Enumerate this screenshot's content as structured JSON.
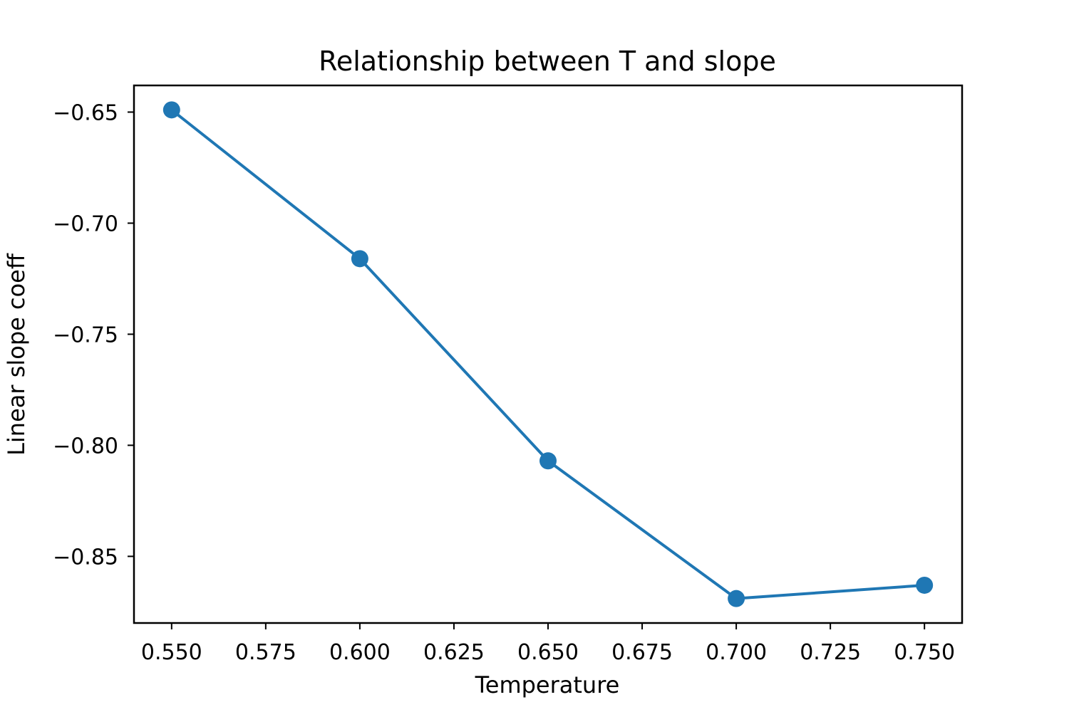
{
  "chart_data": {
    "type": "line",
    "title": "Relationship between T and slope",
    "xlabel": "Temperature",
    "ylabel": "Linear slope coeff",
    "xlim": [
      0.54,
      0.76
    ],
    "ylim": [
      -0.88,
      -0.638
    ],
    "x_ticks": [
      0.55,
      0.575,
      0.6,
      0.625,
      0.65,
      0.675,
      0.7,
      0.725,
      0.75
    ],
    "x_tick_labels": [
      "0.550",
      "0.575",
      "0.600",
      "0.625",
      "0.650",
      "0.675",
      "0.700",
      "0.725",
      "0.750"
    ],
    "y_ticks": [
      -0.65,
      -0.7,
      -0.75,
      -0.8,
      -0.85
    ],
    "y_tick_labels": [
      "−0.65",
      "−0.70",
      "−0.75",
      "−0.80",
      "−0.85"
    ],
    "grid": false,
    "series": [
      {
        "name": "slope",
        "color": "#1f77b4",
        "marker": "circle",
        "x": [
          0.55,
          0.6,
          0.65,
          0.7,
          0.75
        ],
        "y": [
          -0.649,
          -0.716,
          -0.807,
          -0.869,
          -0.863
        ]
      }
    ]
  }
}
